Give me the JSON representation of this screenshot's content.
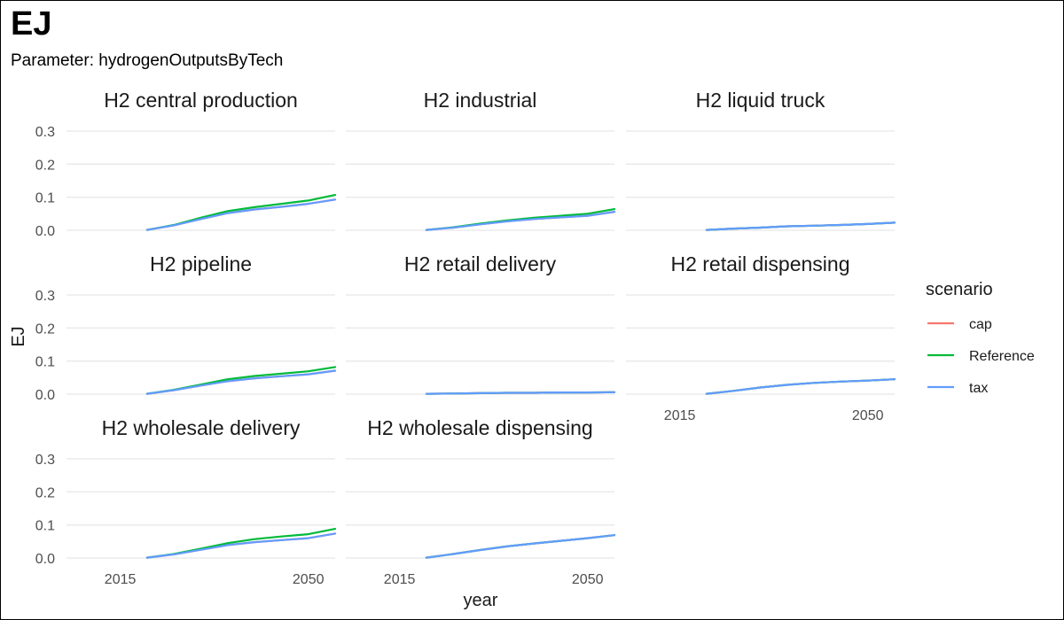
{
  "title": "EJ",
  "subtitle": "Parameter: hydrogenOutputsByTech",
  "chart_data": {
    "type": "line",
    "xlabel": "year",
    "ylabel": "EJ",
    "xlim": [
      2005,
      2055
    ],
    "ylim": [
      0,
      0.3
    ],
    "x_ticks": [
      2015,
      2050
    ],
    "y_ticks": [
      0.0,
      0.1,
      0.2,
      0.3
    ],
    "y_tick_labels": [
      "0.0",
      "0.1",
      "0.2",
      "0.3"
    ],
    "grid": true,
    "legend": {
      "title": "scenario",
      "position": "right",
      "entries": [
        {
          "name": "cap",
          "color": "#F8766D"
        },
        {
          "name": "Reference",
          "color": "#00BA38"
        },
        {
          "name": "tax",
          "color": "#619CFF"
        }
      ]
    },
    "x": [
      2020,
      2025,
      2030,
      2035,
      2040,
      2045,
      2050,
      2055
    ],
    "facets": [
      {
        "title": "H2 central production",
        "series": [
          {
            "name": "cap",
            "values": [
              0.001,
              0.015,
              0.034,
              0.052,
              0.063,
              0.071,
              0.08,
              0.093
            ]
          },
          {
            "name": "Reference",
            "values": [
              0.001,
              0.016,
              0.038,
              0.058,
              0.07,
              0.08,
              0.09,
              0.107
            ]
          },
          {
            "name": "tax",
            "values": [
              0.001,
              0.015,
              0.034,
              0.052,
              0.063,
              0.071,
              0.08,
              0.093
            ]
          }
        ]
      },
      {
        "title": "H2 industrial",
        "series": [
          {
            "name": "cap",
            "values": [
              0.001,
              0.008,
              0.018,
              0.027,
              0.034,
              0.039,
              0.044,
              0.056
            ]
          },
          {
            "name": "Reference",
            "values": [
              0.001,
              0.009,
              0.02,
              0.03,
              0.038,
              0.044,
              0.05,
              0.064
            ]
          },
          {
            "name": "tax",
            "values": [
              0.001,
              0.008,
              0.018,
              0.027,
              0.034,
              0.039,
              0.044,
              0.056
            ]
          }
        ]
      },
      {
        "title": "H2 liquid truck",
        "series": [
          {
            "name": "cap",
            "values": [
              0.001,
              0.005,
              0.008,
              0.012,
              0.014,
              0.016,
              0.019,
              0.023
            ]
          },
          {
            "name": "Reference",
            "values": [
              0.001,
              0.005,
              0.008,
              0.012,
              0.014,
              0.016,
              0.019,
              0.023
            ]
          },
          {
            "name": "tax",
            "values": [
              0.001,
              0.005,
              0.008,
              0.012,
              0.014,
              0.016,
              0.019,
              0.023
            ]
          }
        ]
      },
      {
        "title": "H2 pipeline",
        "series": [
          {
            "name": "cap",
            "values": [
              0.001,
              0.012,
              0.026,
              0.039,
              0.048,
              0.054,
              0.06,
              0.071
            ]
          },
          {
            "name": "Reference",
            "values": [
              0.001,
              0.013,
              0.029,
              0.045,
              0.055,
              0.062,
              0.069,
              0.082
            ]
          },
          {
            "name": "tax",
            "values": [
              0.001,
              0.012,
              0.026,
              0.039,
              0.048,
              0.054,
              0.06,
              0.071
            ]
          }
        ]
      },
      {
        "title": "H2 retail delivery",
        "series": [
          {
            "name": "cap",
            "values": [
              0.001,
              0.002,
              0.003,
              0.004,
              0.004,
              0.005,
              0.005,
              0.006
            ]
          },
          {
            "name": "Reference",
            "values": [
              0.001,
              0.002,
              0.003,
              0.004,
              0.004,
              0.005,
              0.005,
              0.006
            ]
          },
          {
            "name": "tax",
            "values": [
              0.001,
              0.002,
              0.003,
              0.004,
              0.004,
              0.005,
              0.005,
              0.006
            ]
          }
        ]
      },
      {
        "title": "H2 retail dispensing",
        "series": [
          {
            "name": "cap",
            "values": [
              0.001,
              0.01,
              0.02,
              0.028,
              0.034,
              0.038,
              0.041,
              0.045
            ]
          },
          {
            "name": "Reference",
            "values": [
              0.001,
              0.01,
              0.02,
              0.028,
              0.034,
              0.038,
              0.041,
              0.045
            ]
          },
          {
            "name": "tax",
            "values": [
              0.001,
              0.01,
              0.02,
              0.028,
              0.034,
              0.038,
              0.041,
              0.045
            ]
          }
        ]
      },
      {
        "title": "H2 wholesale delivery",
        "series": [
          {
            "name": "cap",
            "values": [
              0.001,
              0.011,
              0.025,
              0.039,
              0.048,
              0.054,
              0.06,
              0.074
            ]
          },
          {
            "name": "Reference",
            "values": [
              0.001,
              0.012,
              0.028,
              0.045,
              0.057,
              0.065,
              0.072,
              0.088
            ]
          },
          {
            "name": "tax",
            "values": [
              0.001,
              0.011,
              0.025,
              0.039,
              0.048,
              0.054,
              0.06,
              0.074
            ]
          }
        ]
      },
      {
        "title": "H2 wholesale dispensing",
        "series": [
          {
            "name": "cap",
            "values": [
              0.001,
              0.012,
              0.024,
              0.035,
              0.044,
              0.052,
              0.06,
              0.069
            ]
          },
          {
            "name": "Reference",
            "values": [
              0.001,
              0.012,
              0.024,
              0.035,
              0.044,
              0.052,
              0.06,
              0.069
            ]
          },
          {
            "name": "tax",
            "values": [
              0.001,
              0.012,
              0.024,
              0.035,
              0.044,
              0.052,
              0.06,
              0.069
            ]
          }
        ]
      }
    ]
  }
}
